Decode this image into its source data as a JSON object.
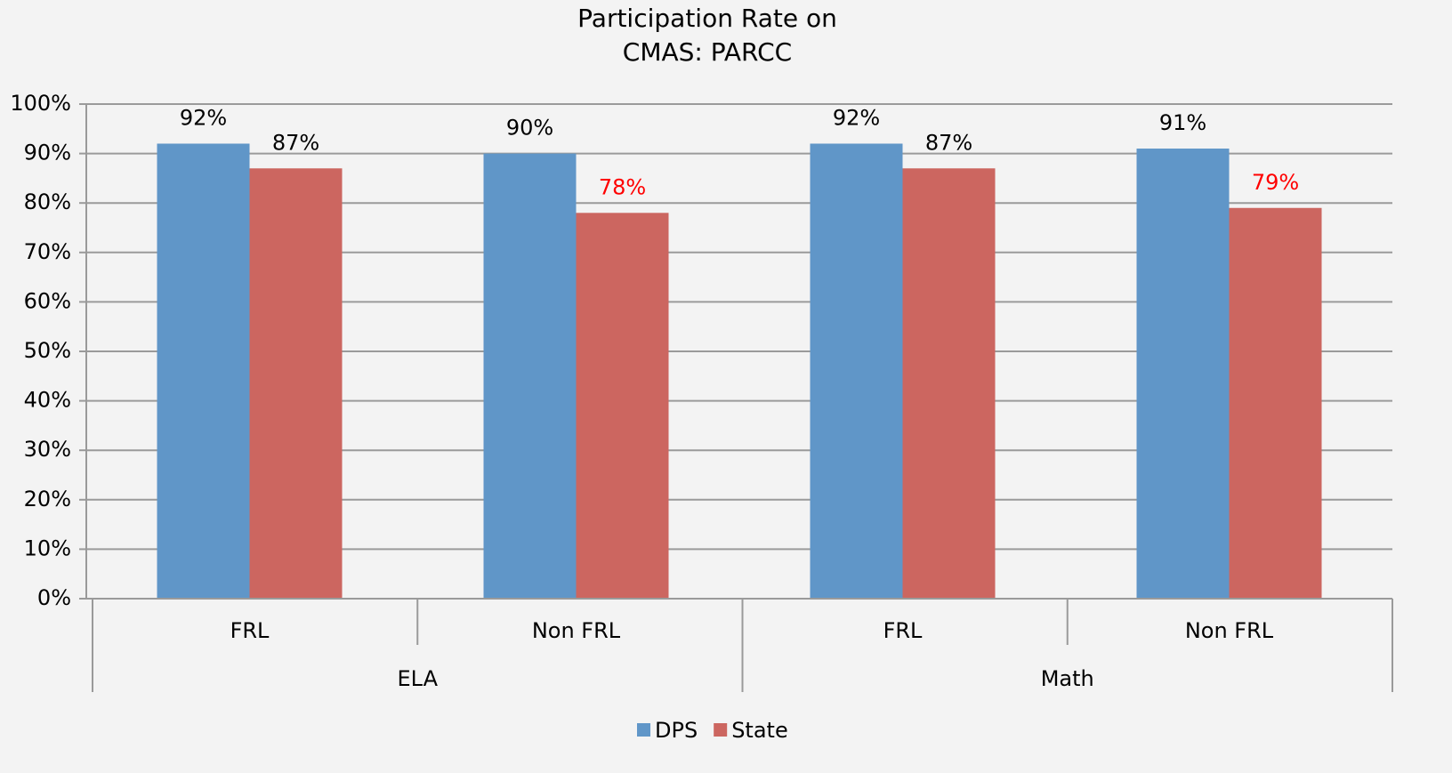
{
  "chart_data": {
    "type": "bar",
    "title": [
      "Participation Rate on",
      "CMAS: PARCC"
    ],
    "categories": [
      "FRL",
      "Non FRL",
      "FRL",
      "Non FRL"
    ],
    "groups": [
      "ELA",
      "Math"
    ],
    "series": [
      {
        "name": "DPS",
        "color": "#6096c8",
        "values": [
          92,
          90,
          92,
          91
        ],
        "value_labels": [
          "92%",
          "90%",
          "92%",
          "91%"
        ],
        "value_label_colors": [
          "#000000",
          "#000000",
          "#000000",
          "#000000"
        ]
      },
      {
        "name": "State",
        "color": "#cc6660",
        "values": [
          87,
          78,
          87,
          79
        ],
        "value_labels": [
          "87%",
          "78%",
          "87%",
          "79%"
        ],
        "value_label_colors": [
          "#000000",
          "#ff0000",
          "#000000",
          "#ff0000"
        ]
      }
    ],
    "ylim": [
      0,
      100
    ],
    "yticks": [
      {
        "value": 0,
        "label": "0%"
      },
      {
        "value": 10,
        "label": "10%"
      },
      {
        "value": 20,
        "label": "20%"
      },
      {
        "value": 30,
        "label": "30%"
      },
      {
        "value": 40,
        "label": "40%"
      },
      {
        "value": 50,
        "label": "50%"
      },
      {
        "value": 60,
        "label": "60%"
      },
      {
        "value": 70,
        "label": "70%"
      },
      {
        "value": 80,
        "label": "80%"
      },
      {
        "value": 90,
        "label": "90%"
      },
      {
        "value": 100,
        "label": "100%"
      }
    ],
    "grid": true,
    "legend": "bottom"
  }
}
